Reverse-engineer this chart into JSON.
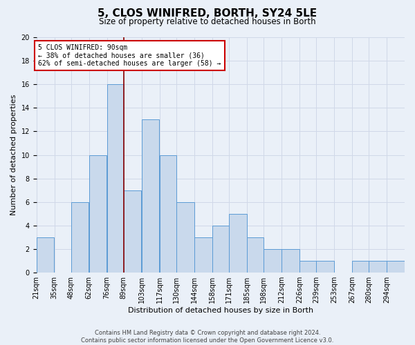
{
  "title": "5, CLOS WINIFRED, BORTH, SY24 5LE",
  "subtitle": "Size of property relative to detached houses in Borth",
  "xlabel": "Distribution of detached houses by size in Borth",
  "ylabel": "Number of detached properties",
  "footer_line1": "Contains HM Land Registry data © Crown copyright and database right 2024.",
  "footer_line2": "Contains public sector information licensed under the Open Government Licence v3.0.",
  "bin_labels": [
    "21sqm",
    "35sqm",
    "48sqm",
    "62sqm",
    "76sqm",
    "89sqm",
    "103sqm",
    "117sqm",
    "130sqm",
    "144sqm",
    "158sqm",
    "171sqm",
    "185sqm",
    "198sqm",
    "212sqm",
    "226sqm",
    "239sqm",
    "253sqm",
    "267sqm",
    "280sqm",
    "294sqm"
  ],
  "bar_values": [
    3,
    0,
    6,
    10,
    16,
    7,
    13,
    10,
    6,
    3,
    4,
    5,
    3,
    2,
    2,
    1,
    1,
    0,
    1,
    1,
    1
  ],
  "bar_color": "#c9d9ec",
  "bar_edgecolor": "#5b9bd5",
  "vline_color": "#8B0000",
  "ylim": [
    0,
    20
  ],
  "yticks": [
    0,
    2,
    4,
    6,
    8,
    10,
    12,
    14,
    16,
    18,
    20
  ],
  "annotation_title": "5 CLOS WINIFRED: 90sqm",
  "annotation_line1": "← 38% of detached houses are smaller (36)",
  "annotation_line2": "62% of semi-detached houses are larger (58) →",
  "annotation_box_color": "#ffffff",
  "annotation_box_edgecolor": "#cc0000",
  "grid_color": "#d0d8e8",
  "bg_color": "#eaf0f8",
  "title_fontsize": 11,
  "subtitle_fontsize": 8.5,
  "ylabel_fontsize": 8,
  "xlabel_fontsize": 8,
  "tick_fontsize": 7,
  "annotation_fontsize": 7,
  "footer_fontsize": 6
}
